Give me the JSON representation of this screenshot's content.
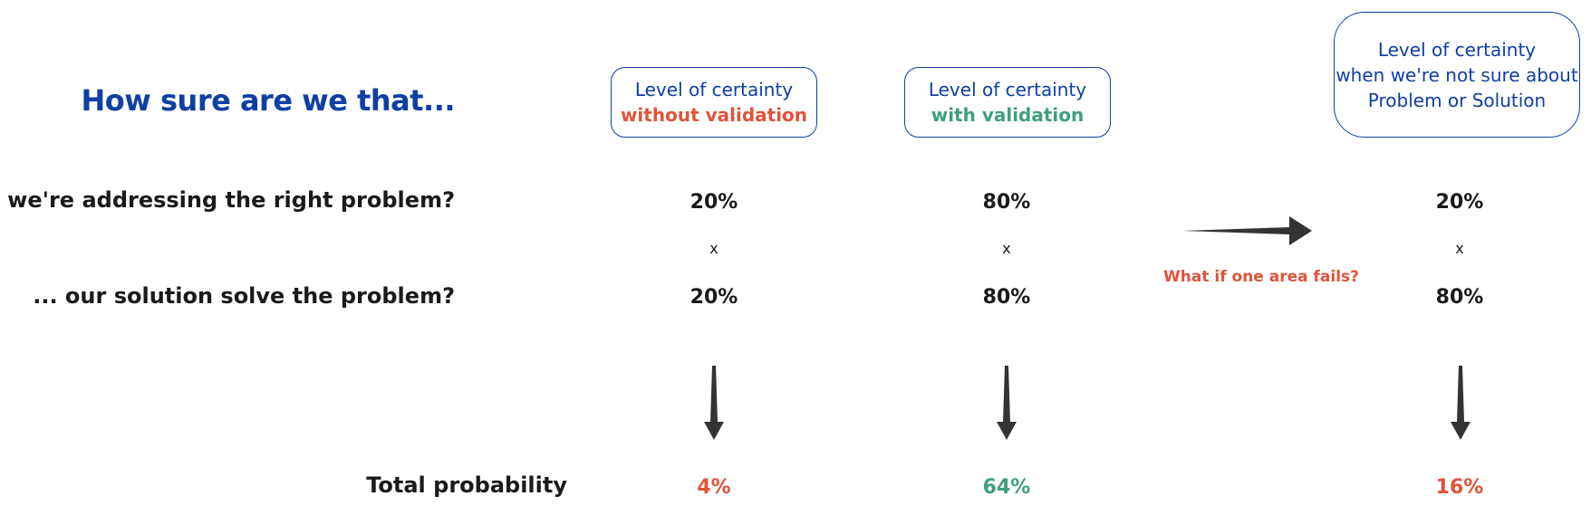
{
  "heading": "How sure are we that...",
  "questions": {
    "problem": "... we're addressing the right problem?",
    "solution": "... our solution solve the problem?",
    "total": "Total probability"
  },
  "columns": [
    {
      "header_line1": "Level of certainty",
      "header_line2": "without validation",
      "problem_value": "20%",
      "operator": "x",
      "solution_value": "20%",
      "total": "4%"
    },
    {
      "header_line1": "Level of certainty",
      "header_line2": "with validation",
      "problem_value": "80%",
      "operator": "x",
      "solution_value": "80%",
      "total": "64%"
    },
    {
      "header_line1": "Level of certainty",
      "header_line2": "when we're not sure about",
      "header_line3": "Problem or Solution",
      "problem_value": "20%",
      "operator": "x",
      "solution_value": "80%",
      "total": "16%"
    }
  ],
  "annotation": "What if one area fails?",
  "colors": {
    "heading_blue": "#0f3fa3",
    "red": "#e0533b",
    "green": "#3f9e80",
    "text_dark": "#1a1a1a",
    "arrow": "#333333"
  }
}
